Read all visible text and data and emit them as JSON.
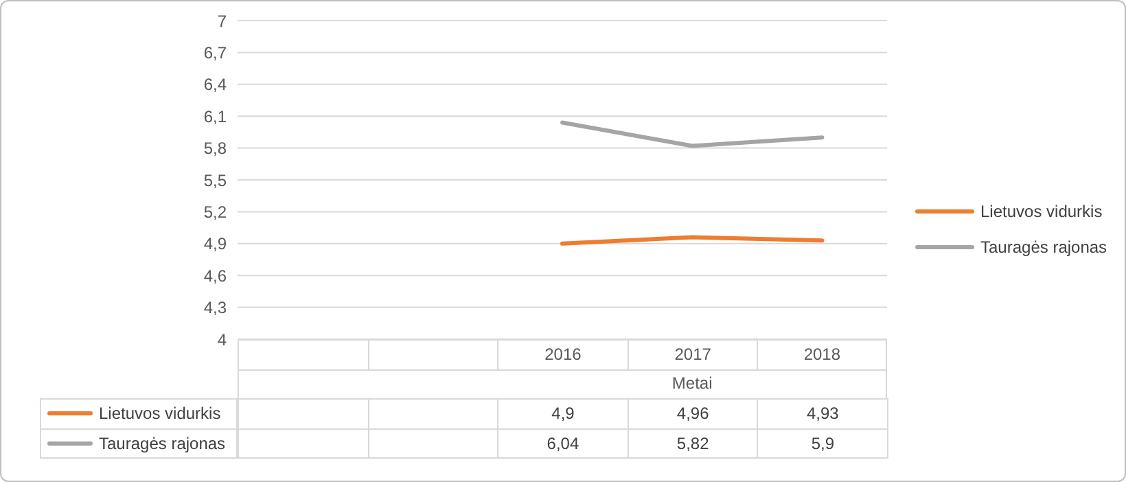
{
  "chart_data": {
    "type": "line",
    "xlabel": "Metai",
    "categories": [
      null,
      null,
      "2016",
      "2017",
      "2018"
    ],
    "series": [
      {
        "name": "Lietuvos vidurkis",
        "color": "#ed7d31",
        "values": [
          null,
          null,
          4.9,
          4.96,
          4.93
        ],
        "value_labels": [
          null,
          null,
          "4,9",
          "4,96",
          "4,93"
        ]
      },
      {
        "name": "Tauragės rajonas",
        "color": "#a5a5a5",
        "values": [
          null,
          null,
          6.04,
          5.82,
          5.9
        ],
        "value_labels": [
          null,
          null,
          "6,04",
          "5,82",
          "5,9"
        ]
      }
    ],
    "ylim": [
      4,
      7
    ],
    "yticks": [
      4,
      {
        "value": 4.3,
        "label": "4,3"
      },
      {
        "value": 4.6,
        "label": "4,6"
      },
      {
        "value": 4.9,
        "label": "4,9"
      },
      {
        "value": 5.2,
        "label": "5,2"
      },
      {
        "value": 5.5,
        "label": "5,5"
      },
      {
        "value": 5.8,
        "label": "5,8"
      },
      {
        "value": 6.1,
        "label": "6,1"
      },
      {
        "value": 6.4,
        "label": "6,4"
      },
      {
        "value": 6.7,
        "label": "6,7"
      },
      7
    ],
    "grid": "y",
    "legend": "right",
    "line_style": "solid",
    "marker": "none"
  }
}
